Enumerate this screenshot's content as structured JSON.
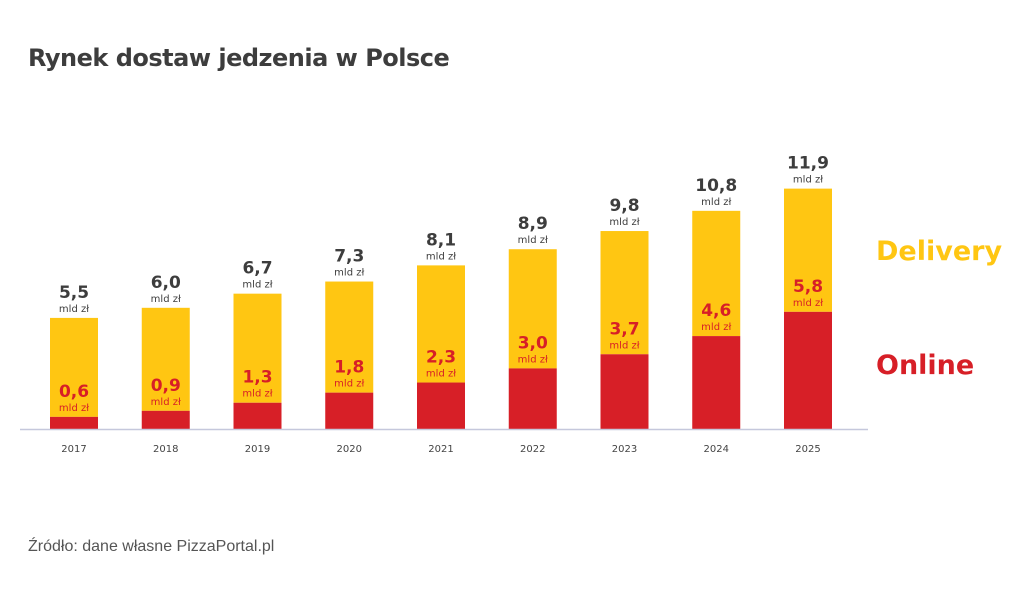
{
  "chart_data": {
    "type": "bar",
    "stacked": true,
    "title": "Rynek dostaw jedzenia w Polsce",
    "xlabel": "",
    "ylabel": "",
    "unit": "mld zł",
    "categories": [
      "2017",
      "2018",
      "2019",
      "2020",
      "2021",
      "2022",
      "2023",
      "2024",
      "2025"
    ],
    "series": [
      {
        "name": "Online",
        "color": "#d71f27",
        "values": [
          0.6,
          0.9,
          1.3,
          1.8,
          2.3,
          3.0,
          3.7,
          4.6,
          5.8
        ],
        "labels": [
          "0,6",
          "0,9",
          "1,3",
          "1,8",
          "2,3",
          "3,0",
          "3,7",
          "4,6",
          "5,8"
        ]
      },
      {
        "name": "Delivery",
        "color": "#ffc612",
        "totals": [
          5.5,
          6.0,
          6.7,
          7.3,
          8.1,
          8.9,
          9.8,
          10.8,
          11.9
        ],
        "labels": [
          "5,5",
          "6,0",
          "6,7",
          "7,3",
          "8,1",
          "8,9",
          "9,8",
          "10,8",
          "11,9"
        ]
      }
    ],
    "ylim": [
      0,
      12
    ],
    "grid": false,
    "legend_position": "right",
    "source": "Źródło: dane własne PizzaPortal.pl"
  }
}
